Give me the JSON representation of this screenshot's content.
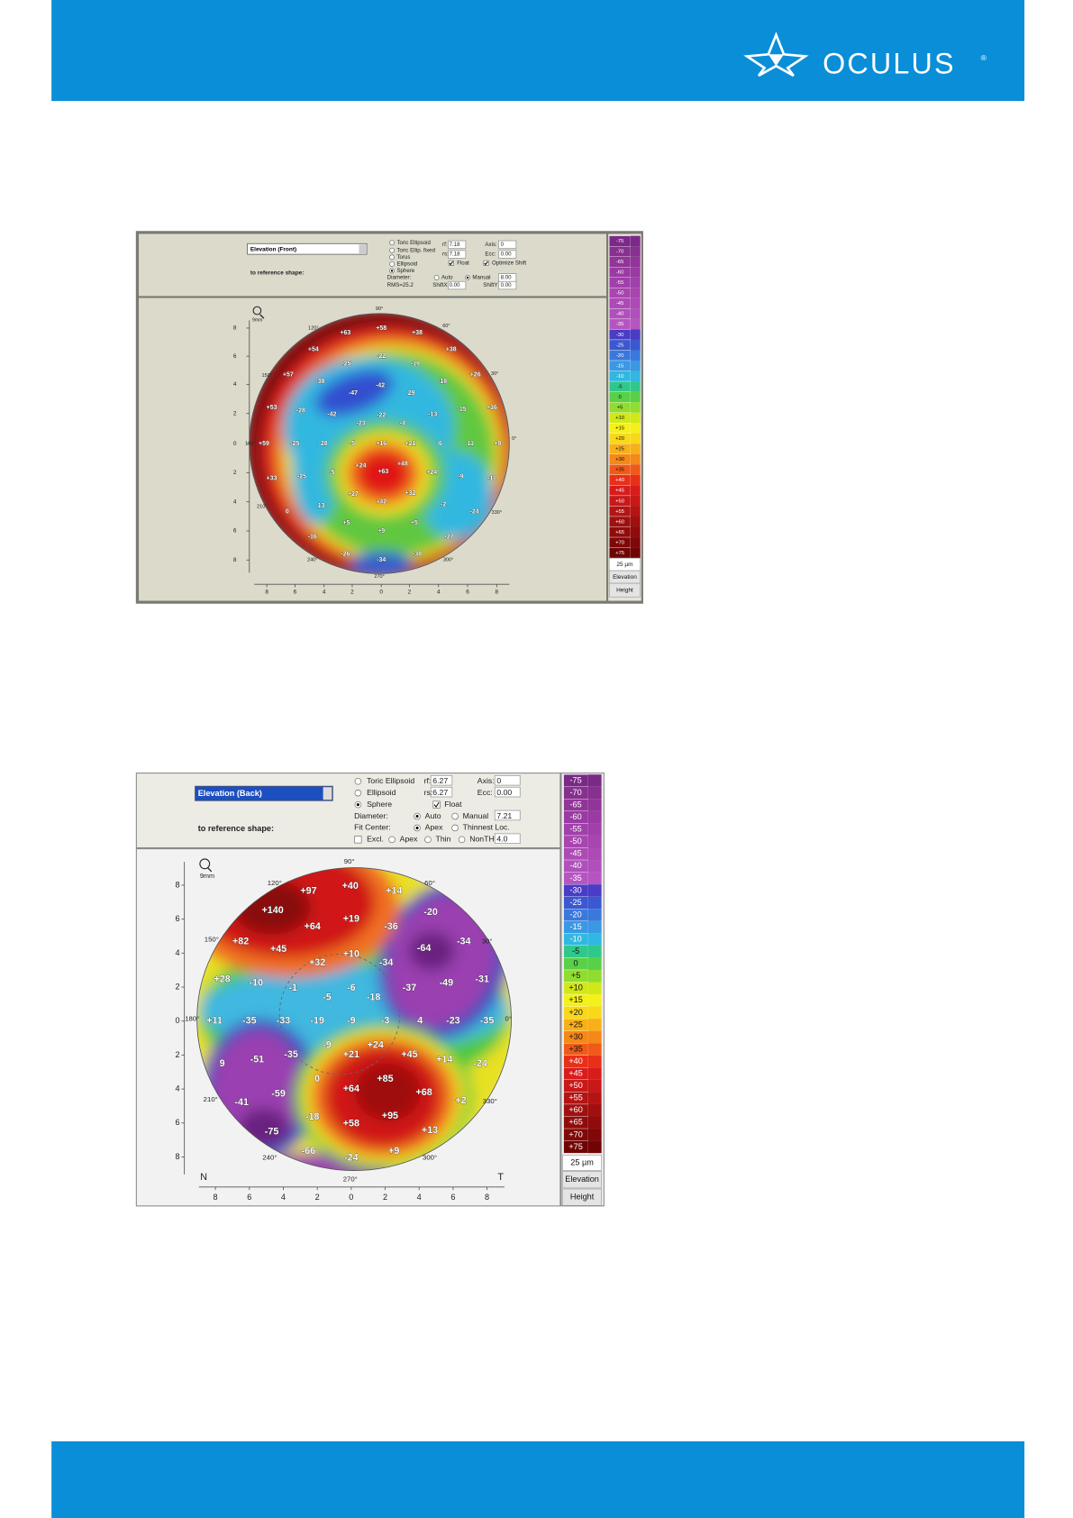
{
  "header": {
    "logo": "OCULUS",
    "registered": "®"
  },
  "panels": [
    {
      "dropdown": "Elevation (Front)",
      "reference": "to reference shape:",
      "magnifier": "9mm",
      "controls": [
        "Toric Ellipsoid",
        "Toric Ellip. fixed",
        "Torus",
        "Ellipsoid",
        "Sphere",
        "rf:",
        "7.18",
        "rs:",
        "7.18",
        "Axis:",
        "0",
        "Ecc:",
        "0.00",
        "Float",
        "Optimize Shift",
        "Diameter:",
        "Auto",
        "Manual",
        "8.00",
        "RMS=25.2",
        "ShiftX",
        "0.00",
        "ShiftY",
        "0.00"
      ],
      "degrees": [
        "90°",
        "60°",
        "30°",
        "0°",
        "330°",
        "300°",
        "270°",
        "240°",
        "210°",
        "180°",
        "150°",
        "120°"
      ],
      "y_ticks": [
        8,
        6,
        4,
        2,
        0,
        2,
        4,
        6,
        8
      ],
      "x_ticks": [
        8,
        6,
        4,
        2,
        0,
        2,
        4,
        6,
        8
      ],
      "map_labels": [
        "+63",
        "+58",
        "+38",
        "+54",
        "-22",
        "+38",
        "-25",
        "-19",
        "+57",
        "+26",
        "-38",
        "-42",
        "-47",
        "-29",
        "-18",
        "+53",
        "-28",
        "-42",
        "-22",
        "-23",
        "-13",
        "-15",
        "+16",
        "-4",
        "+59",
        "-25",
        "-28",
        "-5",
        "+16",
        "+21",
        "-6",
        "-11",
        "+8",
        "+24",
        "+48",
        "+63",
        "+24",
        "-5",
        "-25",
        "+33",
        "-9",
        "-11",
        "+27",
        "+42",
        "+32",
        "-13",
        "0",
        "-2",
        "-24",
        "+5",
        "+9",
        "+5",
        "-16",
        "-27",
        "-26",
        "-34",
        "-38"
      ],
      "scale": [
        "-75",
        "-70",
        "-65",
        "-60",
        "-55",
        "-50",
        "-45",
        "-40",
        "-35",
        "-30",
        "-25",
        "-20",
        "-15",
        "-10",
        "-5",
        "0",
        "+5",
        "+10",
        "+15",
        "+20",
        "+25",
        "+30",
        "+35",
        "+40",
        "+45",
        "+50",
        "+55",
        "+60",
        "+65",
        "+70",
        "+75"
      ],
      "scale_unit": "25 µm",
      "scale_type": "Elevation",
      "scale_mode": "Height"
    },
    {
      "dropdown": "Elevation (Back)",
      "reference": "to reference shape:",
      "magnifier": "9mm",
      "controls": [
        "Toric Ellipsoid",
        "Ellipsoid",
        "Sphere",
        "rf:",
        "6.27",
        "rs:",
        "6.27",
        "Axis:",
        "0",
        "Ecc:",
        "0.00",
        "Float",
        "Diameter:",
        "Auto",
        "Manual",
        "7.21",
        "Fit Center:",
        "Apex",
        "Thinnest Loc.",
        "Excl.",
        "Apex",
        "Thin",
        "NonTH",
        "4.0"
      ],
      "degrees": [
        "90°",
        "60°",
        "30°",
        "0°",
        "330°",
        "300°",
        "270°",
        "240°",
        "210°",
        "180°",
        "150°",
        "120°"
      ],
      "y_ticks": [
        8,
        6,
        4,
        2,
        0,
        2,
        4,
        6,
        8
      ],
      "x_ticks": [
        8,
        6,
        4,
        2,
        0,
        2,
        4,
        6,
        8
      ],
      "nasal": "N",
      "temporal": "T",
      "map_labels": [
        "+97",
        "+40",
        "+14",
        "+140",
        "+64",
        "+19",
        "-36",
        "-20",
        "+82",
        "+45",
        "-64",
        "-34",
        "+32",
        "+10",
        "-34",
        "+28",
        "-10",
        "-1",
        "-6",
        "-37",
        "-49",
        "-31",
        "-5",
        "-18",
        "+11",
        "-35",
        "-33",
        "-19",
        "-9",
        "-3",
        "4",
        "-23",
        "-35",
        "-9",
        "+24",
        "+21",
        "+45",
        "-35",
        "-51",
        "+14",
        "9",
        "-24",
        "0",
        "+85",
        "-59",
        "+64",
        "+68",
        "-41",
        "+2",
        "-18",
        "+95",
        "-75",
        "+58",
        "+13",
        "-66",
        "-24",
        "+9"
      ],
      "scale": [
        "-75",
        "-70",
        "-65",
        "-60",
        "-55",
        "-50",
        "-45",
        "-40",
        "-35",
        "-30",
        "-25",
        "-20",
        "-15",
        "-10",
        "-5",
        "0",
        "+5",
        "+10",
        "+15",
        "+20",
        "+25",
        "+30",
        "+35",
        "+40",
        "+45",
        "+50",
        "+55",
        "+60",
        "+65",
        "+70",
        "+75"
      ],
      "scale_unit": "25 µm",
      "scale_type": "Elevation",
      "scale_mode": "Height"
    }
  ]
}
